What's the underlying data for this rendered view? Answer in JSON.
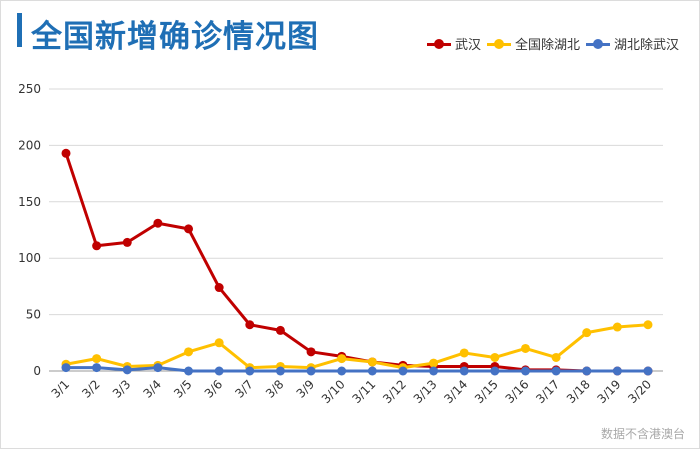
{
  "title": "全国新增确诊情况图",
  "watermark": "数据不含港澳台",
  "colors": {
    "title": "#1f6fb5",
    "grid": "#d9d9d9",
    "axis": "#999999",
    "tick_text": "#333333"
  },
  "chart_data": {
    "type": "line",
    "title": "全国新增确诊情况图",
    "xlabel": "",
    "ylabel": "",
    "ylim": [
      0,
      250
    ],
    "yticks": [
      0,
      50,
      100,
      150,
      200,
      250
    ],
    "grid": true,
    "legend_position": "top-right",
    "x": [
      "3/1",
      "3/2",
      "3/3",
      "3/4",
      "3/5",
      "3/6",
      "3/7",
      "3/8",
      "3/9",
      "3/10",
      "3/11",
      "3/12",
      "3/13",
      "3/14",
      "3/15",
      "3/16",
      "3/17",
      "3/18",
      "3/19",
      "3/20"
    ],
    "series": [
      {
        "name": "武汉",
        "color": "#c00000",
        "values": [
          193,
          111,
          114,
          131,
          126,
          74,
          41,
          36,
          17,
          13,
          8,
          5,
          4,
          4,
          4,
          1,
          1,
          0,
          0,
          0
        ]
      },
      {
        "name": "全国除湖北",
        "color": "#ffc000",
        "values": [
          6,
          11,
          4,
          5,
          17,
          25,
          3,
          4,
          3,
          11,
          8,
          3,
          7,
          16,
          12,
          20,
          12,
          34,
          39,
          41
        ]
      },
      {
        "name": "湖北除武汉",
        "color": "#4472c4",
        "values": [
          3,
          3,
          1,
          3,
          0,
          0,
          0,
          0,
          0,
          0,
          0,
          0,
          0,
          0,
          0,
          0,
          0,
          0,
          0,
          0
        ]
      }
    ]
  }
}
